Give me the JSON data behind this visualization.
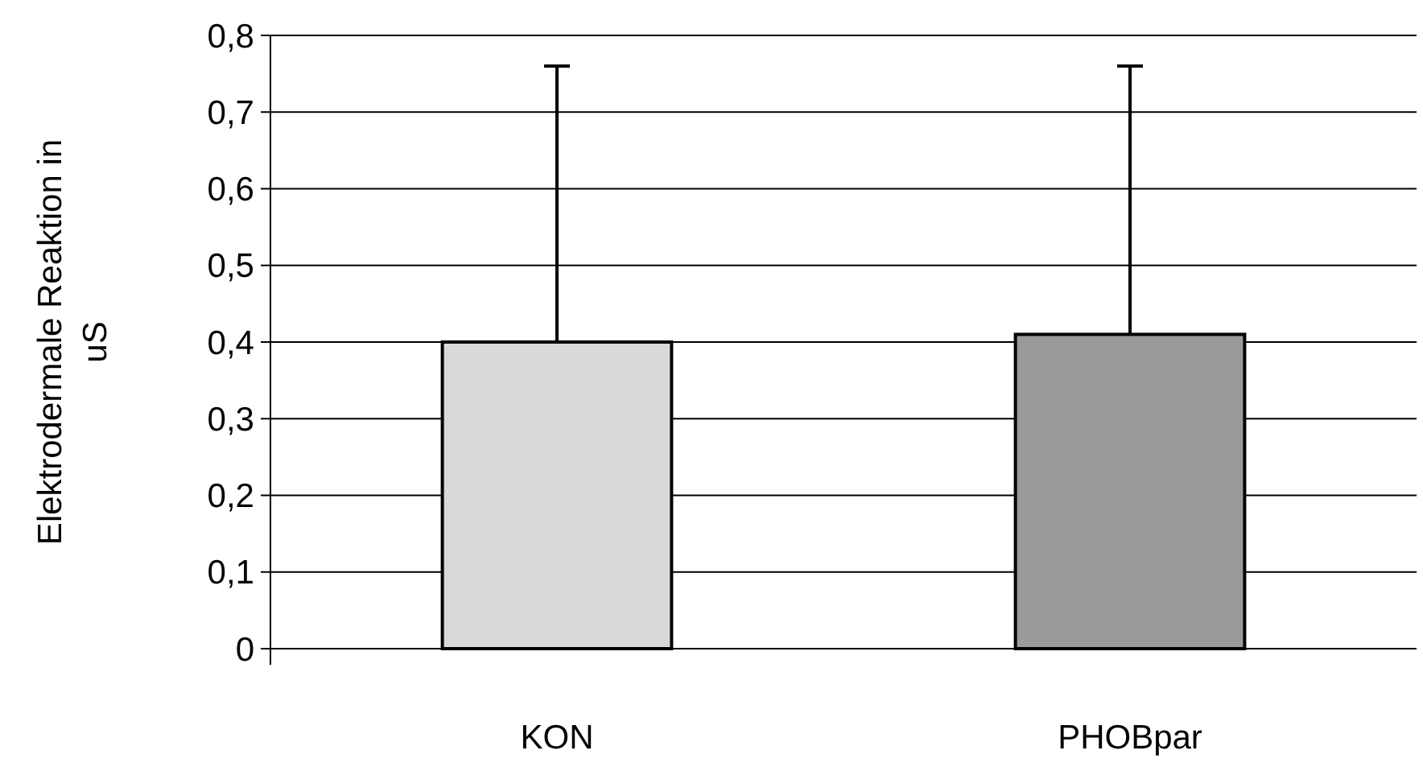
{
  "chart_data": {
    "type": "bar",
    "categories": [
      "KON",
      "PHOBpar"
    ],
    "values": [
      0.4,
      0.41
    ],
    "colors": [
      "#d9d9d9",
      "#9a9a9a"
    ],
    "errors": [
      [
        0.4,
        0.76
      ],
      [
        0.41,
        0.76
      ]
    ],
    "ylabel": "Elektrodermale Reaktion in uS",
    "ylim": [
      0,
      0.8
    ],
    "yticks": [
      {
        "value": 0,
        "label": "0"
      },
      {
        "value": 0.1,
        "label": "0,1"
      },
      {
        "value": 0.2,
        "label": "0,2"
      },
      {
        "value": 0.3,
        "label": "0,3"
      },
      {
        "value": 0.4,
        "label": "0,4"
      },
      {
        "value": 0.5,
        "label": "0,5"
      },
      {
        "value": 0.6,
        "label": "0,6"
      },
      {
        "value": 0.7,
        "label": "0,7"
      },
      {
        "value": 0.8,
        "label": "0,8"
      }
    ],
    "grid": "y"
  }
}
